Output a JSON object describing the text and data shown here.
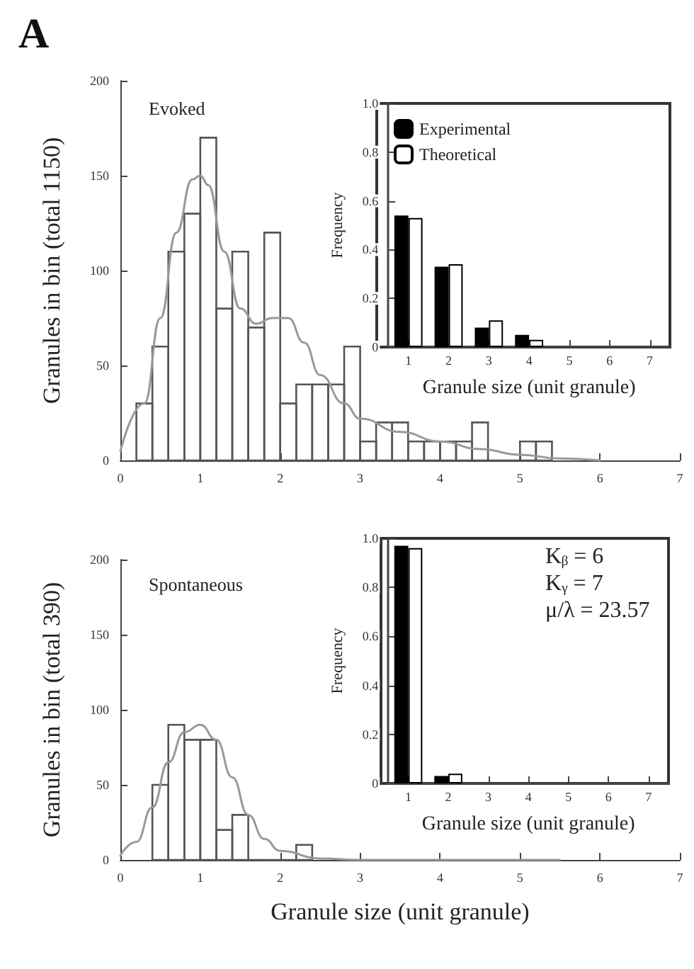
{
  "chart_data": [
    {
      "type": "histogram",
      "title": "A",
      "ylabel": "Granules in bin (total 1150)",
      "annotations": [
        "Evoked"
      ],
      "bins": [
        0.2,
        0.4,
        0.6,
        0.8,
        1.0,
        1.2,
        1.4,
        1.6,
        1.8,
        2.0,
        2.2,
        2.4,
        2.6,
        2.8,
        3.0,
        3.2,
        3.4,
        3.6,
        3.8,
        4.0,
        4.2,
        4.4,
        4.6,
        4.8,
        5.0,
        5.2,
        5.4
      ],
      "series": [
        {
          "type": "histogram",
          "color": "#555555",
          "values": [
            30,
            60,
            110,
            130,
            170,
            80,
            110,
            70,
            120,
            30,
            40,
            40,
            40,
            60,
            10,
            20,
            20,
            10,
            10,
            10,
            10,
            20,
            0,
            0,
            10,
            10
          ]
        },
        {
          "type": "line",
          "color": "#999999",
          "x": [
            0,
            0.3,
            0.5,
            0.7,
            0.9,
            1.0,
            1.1,
            1.3,
            1.5,
            1.7,
            1.9,
            2.1,
            2.3,
            2.5,
            2.8,
            3.0,
            3.5,
            4.0,
            4.5,
            5.0,
            5.5,
            6.0
          ],
          "values": [
            5,
            30,
            75,
            120,
            148,
            150,
            145,
            110,
            80,
            72,
            75,
            75,
            62,
            45,
            30,
            22,
            15,
            10,
            6,
            3,
            1,
            0
          ]
        }
      ],
      "xlim": [
        0,
        7
      ],
      "xticks": [
        0,
        1,
        2,
        3,
        4,
        5,
        6,
        7
      ],
      "ylim": [
        0,
        200
      ],
      "yticks": [
        0,
        50,
        100,
        150,
        200
      ],
      "grid": false
    },
    {
      "type": "bar",
      "xlabel": "Granule size (unit granule)",
      "ylabel": "Frequency",
      "categories": [
        "1",
        "2",
        "3",
        "4",
        "5",
        "6",
        "7"
      ],
      "series": [
        {
          "name": "Experimental",
          "color": "#000000",
          "values": [
            0.54,
            0.33,
            0.08,
            0.05,
            0,
            0,
            0
          ]
        },
        {
          "name": "Theoretical",
          "color": "#ffffff",
          "values": [
            0.53,
            0.34,
            0.11,
            0.03,
            0,
            0,
            0
          ]
        }
      ],
      "ylim": [
        0,
        1
      ],
      "yticks": [
        0,
        0.2,
        0.4,
        0.6,
        0.8,
        {
          "value": 1,
          "label": "1.0"
        }
      ],
      "legend": "top left",
      "grid": false
    },
    {
      "type": "histogram",
      "xlabel": "Granule size (unit granule)",
      "ylabel": "Granules in bin (total 390)",
      "annotations": [
        "Spontaneous"
      ],
      "bins": [
        0.4,
        0.6,
        0.8,
        1.0,
        1.2,
        1.4,
        1.6,
        1.8,
        2.0,
        2.2,
        2.4
      ],
      "series": [
        {
          "type": "histogram",
          "color": "#555555",
          "values": [
            50,
            90,
            80,
            80,
            20,
            30,
            0,
            0,
            0,
            10
          ]
        },
        {
          "type": "line",
          "color": "#999999",
          "x": [
            0,
            0.2,
            0.4,
            0.6,
            0.8,
            1.0,
            1.2,
            1.4,
            1.6,
            1.8,
            2.0,
            2.5,
            3.0,
            4.0,
            5.5
          ],
          "values": [
            3,
            12,
            35,
            65,
            85,
            90,
            80,
            55,
            30,
            14,
            6,
            1,
            0,
            0,
            0
          ]
        }
      ],
      "xlim": [
        0,
        7
      ],
      "xticks": [
        0,
        1,
        2,
        3,
        4,
        5,
        6,
        7
      ],
      "ylim": [
        0,
        200
      ],
      "yticks": [
        0,
        50,
        100,
        150,
        200
      ],
      "grid": false
    },
    {
      "type": "bar",
      "xlabel": "Granule size (unit granule)",
      "ylabel": "Frequency",
      "annotations": [
        "Kᵦ = 6",
        "Kᵧ = 7",
        "μ/λ = 23.57"
      ],
      "categories": [
        "1",
        "2",
        "3",
        "4",
        "5",
        "6",
        "7"
      ],
      "series": [
        {
          "color": "#000000",
          "values": [
            0.97,
            0.03,
            0,
            0,
            0,
            0,
            0
          ]
        },
        {
          "color": "#ffffff",
          "values": [
            0.96,
            0.04,
            0,
            0,
            0,
            0,
            0
          ]
        }
      ],
      "ylim": [
        0,
        1
      ],
      "yticks": [
        0,
        0.2,
        0.4,
        0.6,
        0.8,
        {
          "value": 1,
          "label": "1.0"
        }
      ],
      "legend": false,
      "grid": false
    }
  ]
}
